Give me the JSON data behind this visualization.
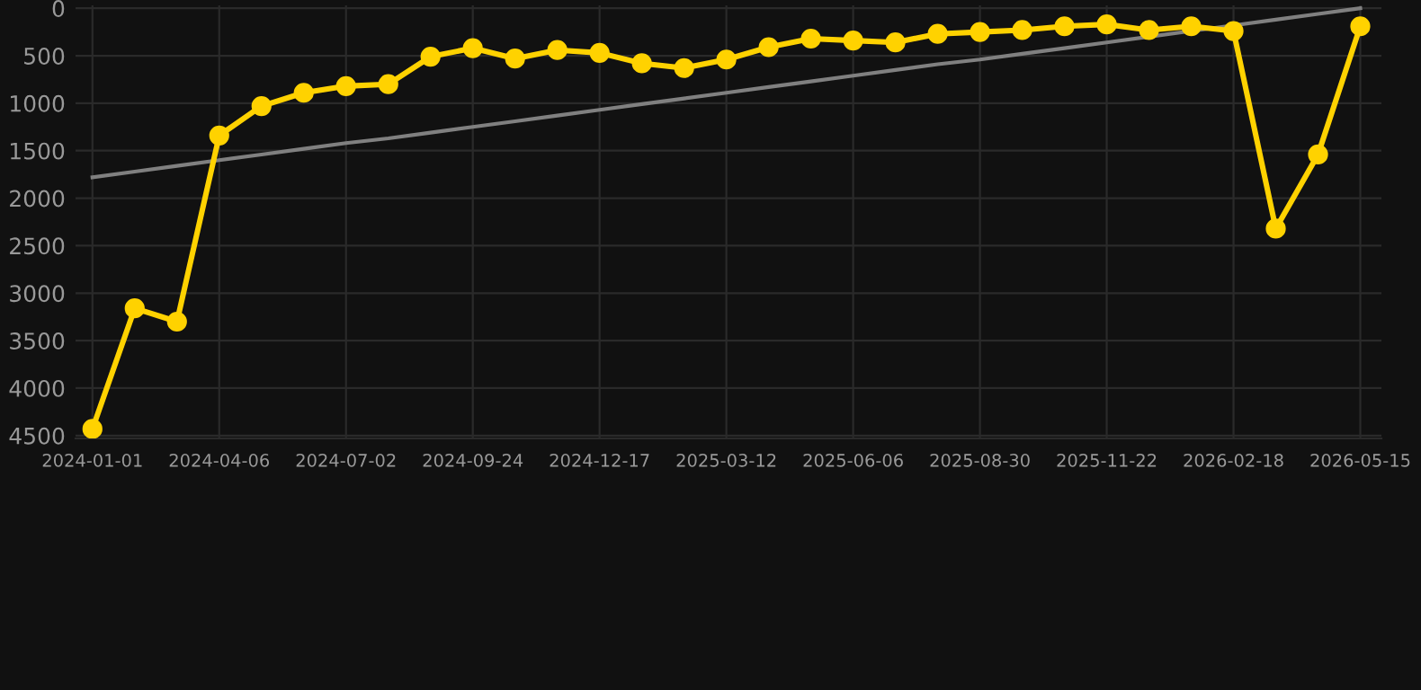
{
  "chart_data": {
    "type": "line",
    "categories": [
      "2024-01-01",
      null,
      null,
      "2024-04-06",
      null,
      null,
      "2024-07-02",
      null,
      null,
      "2024-09-24",
      null,
      null,
      "2024-12-17",
      null,
      null,
      "2025-03-12",
      null,
      null,
      "2025-06-06",
      null,
      null,
      "2025-08-30",
      null,
      null,
      "2025-11-22",
      null,
      null,
      "2026-02-18",
      null,
      null,
      "2026-05-15"
    ],
    "series": [
      {
        "color": "#ffd200",
        "marker": "circle",
        "values": [
          4430,
          3160,
          3300,
          1340,
          1030,
          890,
          820,
          800,
          510,
          420,
          530,
          440,
          470,
          580,
          630,
          540,
          410,
          320,
          340,
          360,
          270,
          250,
          230,
          190,
          170,
          230,
          190,
          240,
          2320,
          1540,
          190
        ]
      },
      {
        "type": "line",
        "color": "#808080",
        "marker": "none",
        "values": [
          1780,
          1720,
          1660,
          1600,
          1540,
          1480,
          1420,
          1370,
          1310,
          1250,
          1190,
          1130,
          1070,
          1010,
          950,
          890,
          830,
          770,
          710,
          650,
          590,
          540,
          480,
          420,
          360,
          300,
          240,
          180,
          120,
          60,
          0
        ]
      }
    ],
    "ylim": [
      4530,
      -30
    ],
    "yticks": [
      0,
      500,
      1000,
      1500,
      2000,
      2500,
      3000,
      3500,
      4000,
      4500
    ],
    "grid": true,
    "line_style": "solid"
  }
}
